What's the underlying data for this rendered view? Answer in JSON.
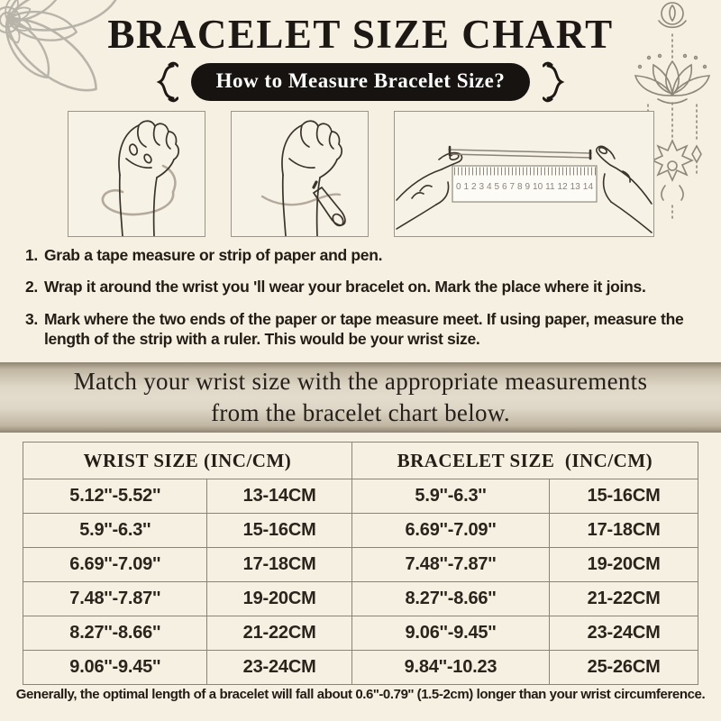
{
  "page": {
    "title": "BRACELET SIZE CHART"
  },
  "badge": {
    "label": "How to Measure Bracelet Size?"
  },
  "illustrations": {
    "step1": "hand with tape measure wrapped around wrist",
    "step2": "hand with pen marking wrist",
    "step3": "two hands measuring paper strip with ruler",
    "ruler_numbers": "0 1 2 3 4 5 6 7 8 9 10 11 12 13 14"
  },
  "instructions": {
    "items": [
      {
        "num": "1.",
        "text": "Grab a tape measure or strip of paper and pen."
      },
      {
        "num": "2.",
        "text": "Wrap it around the wrist you 'll wear your bracelet on. Mark the place where it joins."
      },
      {
        "num": "3.",
        "text": "Mark where the two ends of the paper or tape measure meet. If using paper, measure the length of the strip with a ruler. This would be your wrist size."
      }
    ]
  },
  "banner": {
    "line1": "Match your wrist size with the appropriate measurements",
    "line2": "from the bracelet chart below."
  },
  "table": {
    "headers": [
      "WRIST SIZE (INC/CM)",
      "BRACELET SIZE  (INC/CM)"
    ],
    "rows": [
      [
        "5.12''-5.52''",
        "13-14CM",
        "5.9''-6.3''",
        "15-16CM"
      ],
      [
        "5.9''-6.3''",
        "15-16CM",
        "6.69''-7.09''",
        "17-18CM"
      ],
      [
        "6.69''-7.09''",
        "17-18CM",
        "7.48''-7.87''",
        "19-20CM"
      ],
      [
        "7.48''-7.87''",
        "19-20CM",
        "8.27''-8.66''",
        "21-22CM"
      ],
      [
        "8.27''-8.66''",
        "21-22CM",
        "9.06''-9.45''",
        "23-24CM"
      ],
      [
        "9.06''-9.45''",
        "23-24CM",
        "9.84''-10.23",
        "25-26CM"
      ]
    ]
  },
  "footer": {
    "note": "Generally, the optimal length of a bracelet will fall about 0.6''-0.79'' (1.5-2cm) longer than your wrist circumference."
  },
  "colors": {
    "background": "#f5f0e2",
    "ink": "#221c15",
    "badge_bg": "#171310",
    "banner_light": "#e3dccc",
    "banner_dark": "#8f8572",
    "table_border": "#8b8474",
    "corner_mandala": "#b9b4aa",
    "lotus_ornament": "#8d8679"
  }
}
